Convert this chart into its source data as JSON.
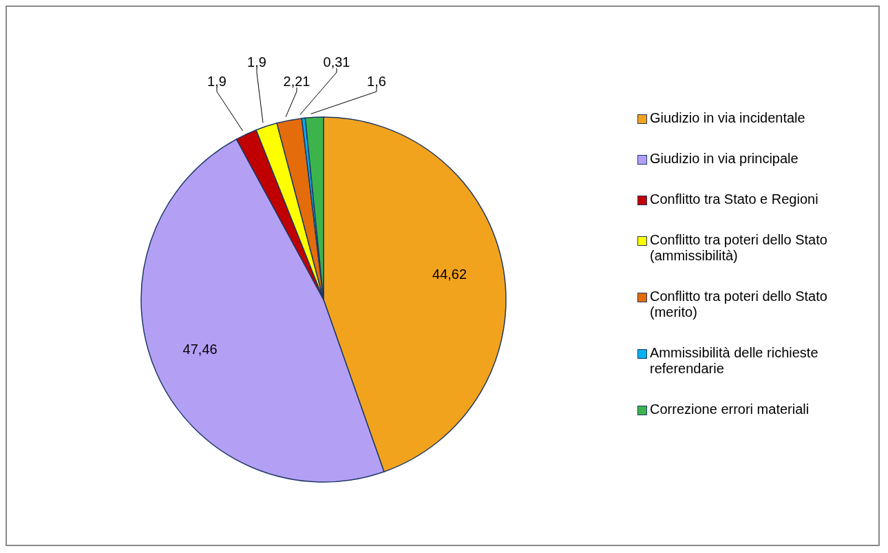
{
  "chart_data": {
    "type": "pie",
    "categories": [
      "Giudizio in via incidentale",
      "Giudizio in via principale",
      "Conflitto tra Stato e Regioni",
      "Conflitto tra poteri dello Stato (ammissibilità)",
      "Conflitto tra poteri dello Stato (merito)",
      "Ammissibilità delle richieste referendarie",
      "Correzione errori materiali"
    ],
    "values": [
      44.62,
      47.46,
      1.9,
      1.9,
      2.21,
      0.31,
      1.6
    ],
    "colors": [
      "#f2a31e",
      "#b3a0f5",
      "#c00000",
      "#ffff00",
      "#e46c0a",
      "#00b0f0",
      "#3cb44b"
    ],
    "value_labels": [
      "44,62",
      "47,46",
      "1,9",
      "1,9",
      "2,21",
      "0,31",
      "1,6"
    ],
    "legend": "right"
  }
}
